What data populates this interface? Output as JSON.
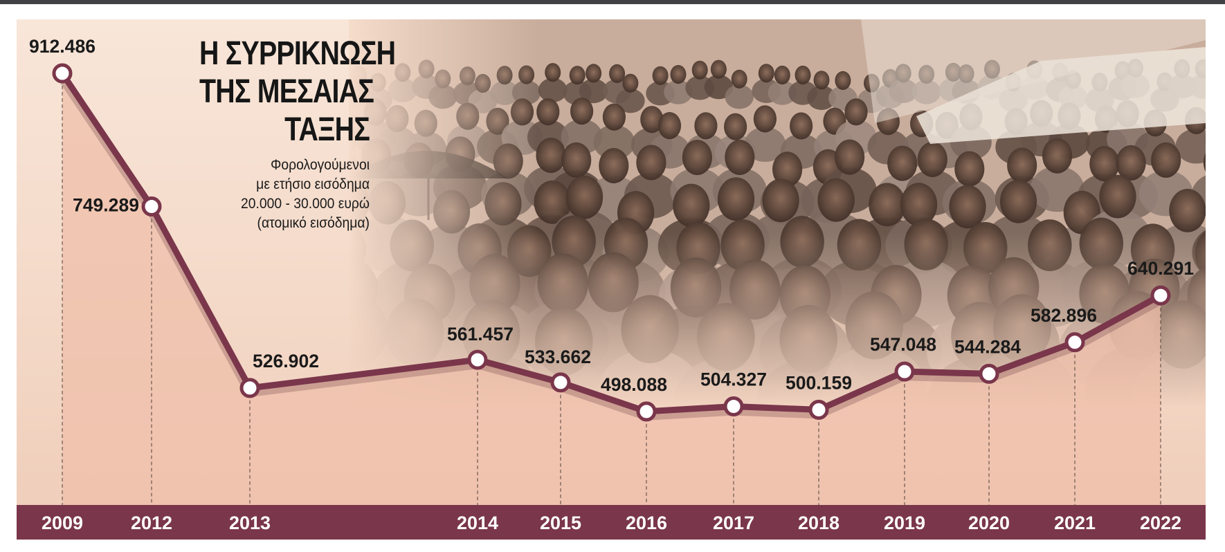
{
  "title_lines": [
    "Η ΣΥΡΡΙΚΝΩΣΗ",
    "ΤΗΣ ΜΕΣΑΙΑΣ",
    "ΤΑΞΗΣ"
  ],
  "subtitle_lines": [
    "Φορολογούμενοι",
    "με ετήσιο εισόδημα",
    "20.000 - 30.000 ευρώ",
    "(ατομικό εισόδημα)"
  ],
  "colors": {
    "line": "#7a364b",
    "marker_fill": "#ffffff",
    "area_fill": "#efbfa9",
    "axis_band": "#7a364b",
    "axis_text": "#ffffff",
    "value_text": "#1a1a1a"
  },
  "chart_data": {
    "type": "line",
    "title": "Η ΣΥΡΡΙΚΝΩΣΗ ΤΗΣ ΜΕΣΑΙΑΣ ΤΑΞΗΣ",
    "x": [
      2009,
      2012,
      2013,
      2014,
      2015,
      2016,
      2017,
      2018,
      2019,
      2020,
      2021,
      2022
    ],
    "x_labels": [
      "2009",
      "2012",
      "2013",
      "2014",
      "2015",
      "2016",
      "2017",
      "2018",
      "2019",
      "2020",
      "2021",
      "2022"
    ],
    "values": [
      912486,
      749289,
      526902,
      561457,
      533662,
      498088,
      504327,
      500159,
      547048,
      544284,
      582896,
      640291
    ],
    "value_labels": [
      "912.486",
      "749.289",
      "526.902",
      "561.457",
      "533.662",
      "498.088",
      "504.327",
      "500.159",
      "547.048",
      "544.284",
      "582.896",
      "640.291"
    ],
    "xlabel": "",
    "ylabel": "",
    "grid": false,
    "legend": "none"
  }
}
